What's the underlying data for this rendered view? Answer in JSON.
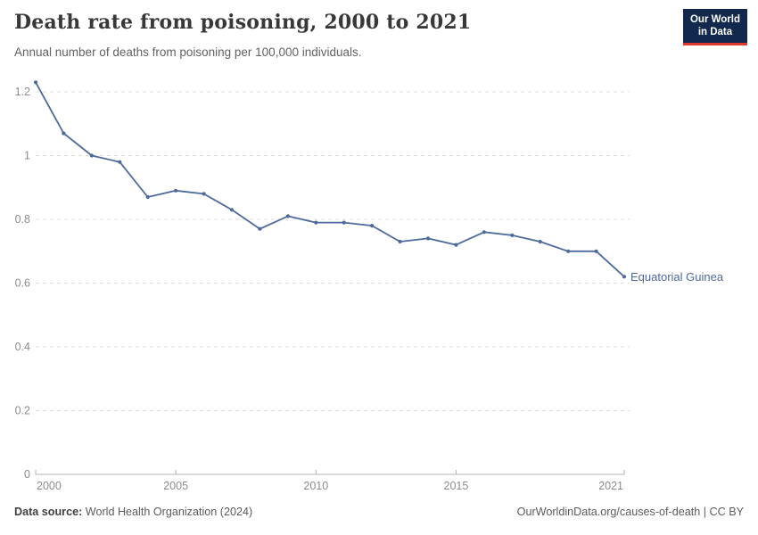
{
  "header": {
    "title": "Death rate from poisoning, 2000 to 2021",
    "subtitle": "Annual number of deaths from poisoning per 100,000 individuals."
  },
  "logo": {
    "line1": "Our World",
    "line2": "in Data",
    "bg_color": "#12294d",
    "accent_color": "#dc3a2c"
  },
  "chart_data": {
    "type": "line",
    "title": "Death rate from poisoning, 2000 to 2021",
    "xlabel": "",
    "ylabel": "",
    "x": [
      2000,
      2001,
      2002,
      2003,
      2004,
      2005,
      2006,
      2007,
      2008,
      2009,
      2010,
      2011,
      2012,
      2013,
      2014,
      2015,
      2016,
      2017,
      2018,
      2019,
      2020,
      2021
    ],
    "series": [
      {
        "name": "Equatorial Guinea",
        "color": "#4C6A9C",
        "values": [
          1.23,
          1.07,
          1.0,
          0.98,
          0.87,
          0.89,
          0.88,
          0.83,
          0.77,
          0.81,
          0.79,
          0.79,
          0.78,
          0.73,
          0.74,
          0.72,
          0.76,
          0.75,
          0.73,
          0.7,
          0.7,
          0.62
        ]
      }
    ],
    "xticks": [
      2000,
      2005,
      2010,
      2015,
      2021
    ],
    "yticks": [
      0,
      0.2,
      0.4,
      0.6,
      0.8,
      1,
      1.2
    ],
    "xlim": [
      2000,
      2021
    ],
    "ylim": [
      0,
      1.2
    ],
    "grid": "horizontal-dashed",
    "legend": "end-of-line-label"
  },
  "footer": {
    "source_label": "Data source:",
    "source": "World Health Organization (2024)",
    "right": "OurWorldinData.org/causes-of-death | CC BY"
  },
  "colors": {
    "line": "#4C6A9C",
    "grid": "#dcdcdc",
    "axis": "#b3b3b3",
    "tick_label": "#8c8c8c",
    "title": "#383838",
    "subtitle": "#616161",
    "footer": "#5b5b5b"
  }
}
